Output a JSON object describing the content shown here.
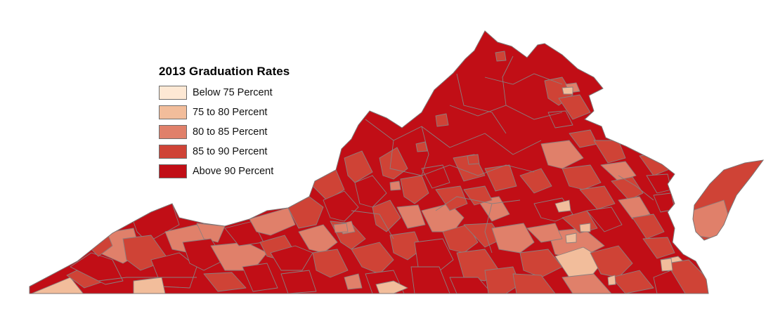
{
  "legend": {
    "title": "2013 Graduation Rates",
    "items": [
      {
        "label": "Below 75 Percent",
        "color": "#fde8d4"
      },
      {
        "label": "75 to 80 Percent",
        "color": "#f2bd9b"
      },
      {
        "label": "80 to 85 Percent",
        "color": "#e0806a"
      },
      {
        "label": "85 to 90 Percent",
        "color": "#cf4336"
      },
      {
        "label": "Above 90 Percent",
        "color": "#c10e16"
      }
    ]
  },
  "map": {
    "region": "Virginia",
    "boundary_color": "#8a7f7f"
  }
}
